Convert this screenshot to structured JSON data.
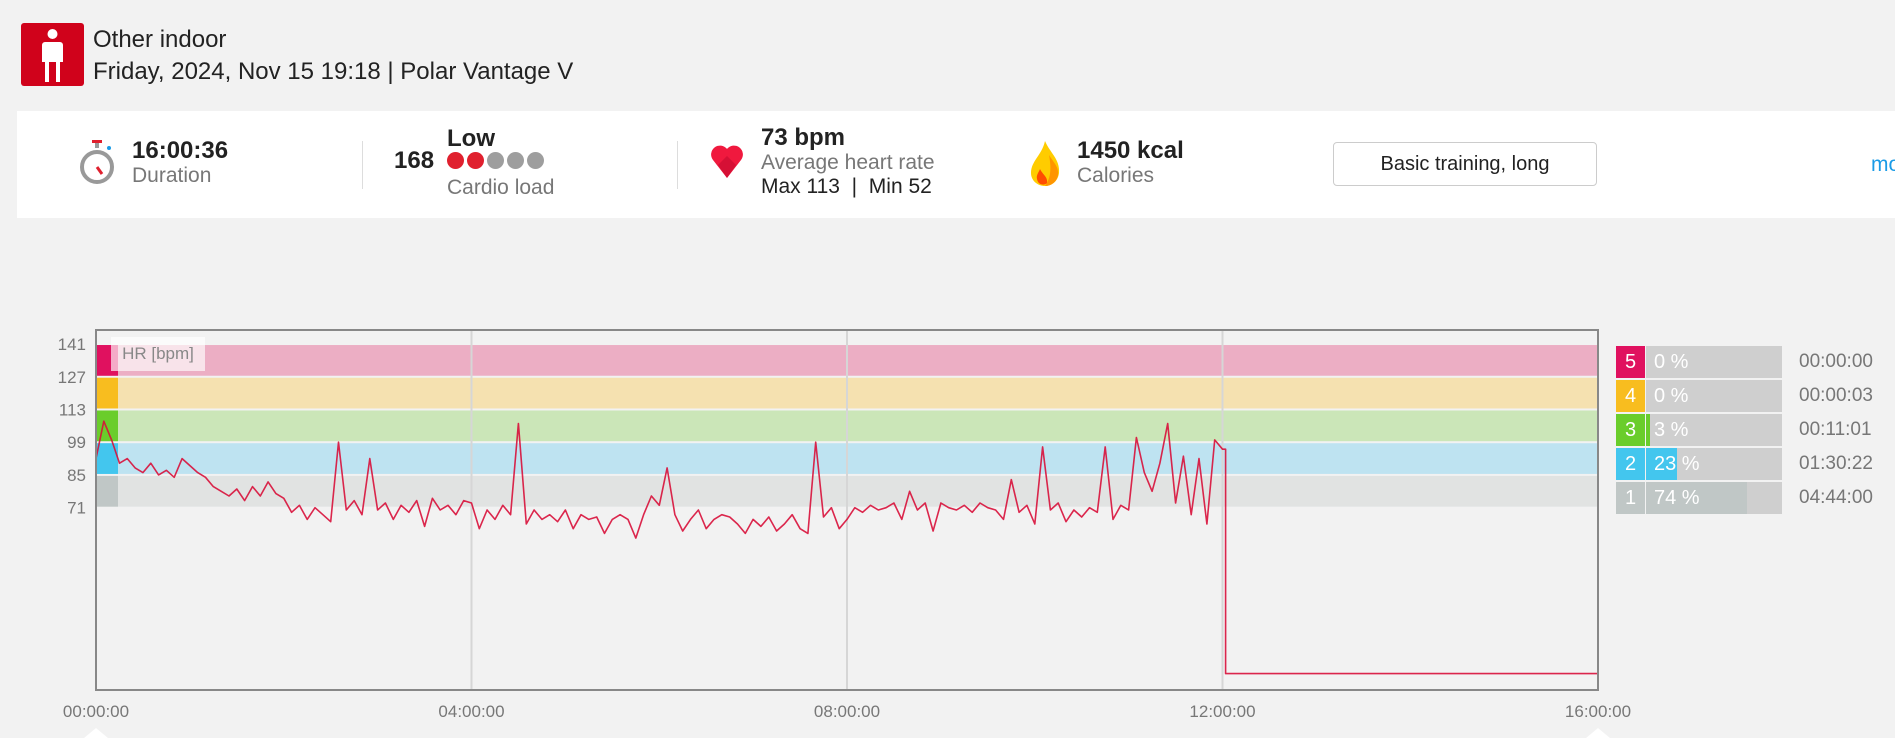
{
  "header": {
    "sport": "Other indoor",
    "subtitle": "Friday, 2024, Nov 15 19:18 | Polar Vantage V"
  },
  "summary": {
    "duration": {
      "value": "16:00:36",
      "label": "Duration"
    },
    "cardio_load": {
      "value": "168",
      "level_text": "Low",
      "label": "Cardio load",
      "level": 2,
      "max_level": 5,
      "on_color": "#e0202e",
      "off_color": "#9e9e9e"
    },
    "heart_rate": {
      "value": "73 bpm",
      "label": "Average heart rate",
      "max_min": "Max 113  |  Min 52"
    },
    "calories": {
      "value": "1450 kcal",
      "label": "Calories"
    },
    "training_benefit": "Basic training, long",
    "more_link": "mo"
  },
  "zones": [
    {
      "num": "5",
      "pct_text": "0 %",
      "pct": 0,
      "time": "00:00:00",
      "color": "#e0115f",
      "band": "#ecaec4",
      "from": 127,
      "to": 141
    },
    {
      "num": "4",
      "pct_text": "0 %",
      "pct": 0,
      "time": "00:00:03",
      "color": "#f8bd1f",
      "band": "#f5e1b0",
      "from": 113,
      "to": 127
    },
    {
      "num": "3",
      "pct_text": "3 %",
      "pct": 3,
      "time": "00:11:01",
      "color": "#6acd2b",
      "band": "#cbe6b8",
      "from": 99,
      "to": 113
    },
    {
      "num": "2",
      "pct_text": "23 %",
      "pct": 23,
      "time": "01:30:22",
      "color": "#43c6ee",
      "band": "#bee3f1",
      "from": 85,
      "to": 99
    },
    {
      "num": "1",
      "pct_text": "74 %",
      "pct": 74,
      "time": "04:44:00",
      "color": "#c0c7c6",
      "band": "#e1e3e2",
      "from": 71,
      "to": 85
    }
  ],
  "chart_data": {
    "type": "line",
    "title": "HR [bpm]",
    "ylabel": "HR [bpm]",
    "xlabel": "",
    "yticks": [
      141,
      127,
      113,
      99,
      85,
      71
    ],
    "xticks": [
      "00:00:00",
      "04:00:00",
      "08:00:00",
      "12:00:00",
      "16:00:00"
    ],
    "xtick_minutes": [
      0,
      240,
      480,
      720,
      960
    ],
    "xlim_minutes": [
      0,
      960
    ],
    "ylim": [
      -7,
      147
    ],
    "line_color": "#d8103a",
    "series": [
      {
        "name": "Heart rate",
        "x_minutes": [
          0,
          5,
          10,
          15,
          20,
          25,
          30,
          35,
          40,
          45,
          50,
          55,
          60,
          65,
          70,
          75,
          80,
          85,
          90,
          95,
          100,
          105,
          110,
          115,
          120,
          125,
          130,
          135,
          140,
          145,
          150,
          155,
          160,
          165,
          170,
          175,
          180,
          185,
          190,
          195,
          200,
          205,
          210,
          215,
          220,
          225,
          230,
          235,
          240,
          245,
          250,
          255,
          260,
          265,
          270,
          275,
          280,
          285,
          290,
          295,
          300,
          305,
          310,
          315,
          320,
          325,
          330,
          335,
          340,
          345,
          350,
          355,
          360,
          365,
          370,
          375,
          380,
          385,
          390,
          395,
          400,
          405,
          410,
          415,
          420,
          425,
          430,
          435,
          440,
          445,
          450,
          455,
          460,
          465,
          470,
          475,
          480,
          485,
          490,
          495,
          500,
          505,
          510,
          515,
          520,
          525,
          530,
          535,
          540,
          545,
          550,
          555,
          560,
          565,
          570,
          575,
          580,
          585,
          590,
          595,
          600,
          605,
          610,
          615,
          620,
          625,
          630,
          635,
          640,
          645,
          650,
          655,
          660,
          665,
          670,
          675,
          680,
          685,
          690,
          695,
          700,
          705,
          710,
          715,
          720,
          722,
          960
        ],
        "values": [
          92,
          108,
          100,
          90,
          92,
          88,
          86,
          90,
          85,
          87,
          84,
          92,
          89,
          86,
          84,
          80,
          78,
          76,
          79,
          74,
          80,
          76,
          82,
          77,
          75,
          69,
          72,
          66,
          71,
          68,
          65,
          99,
          70,
          74,
          68,
          92,
          70,
          73,
          66,
          72,
          69,
          74,
          63,
          75,
          70,
          72,
          68,
          74,
          73,
          62,
          70,
          66,
          72,
          68,
          107,
          64,
          70,
          66,
          68,
          65,
          70,
          62,
          68,
          66,
          67,
          60,
          66,
          68,
          66,
          58,
          68,
          76,
          72,
          88,
          68,
          61,
          66,
          70,
          62,
          66,
          68,
          67,
          64,
          60,
          66,
          63,
          67,
          61,
          64,
          68,
          62,
          60,
          99,
          67,
          71,
          62,
          66,
          71,
          69,
          72,
          70,
          71,
          73,
          66,
          78,
          70,
          73,
          61,
          73,
          71,
          70,
          72,
          69,
          73,
          71,
          70,
          66,
          83,
          69,
          72,
          64,
          97,
          70,
          73,
          65,
          70,
          67,
          71,
          69,
          97,
          66,
          72,
          70,
          101,
          86,
          78,
          90,
          107,
          73,
          93,
          68,
          92,
          64,
          100,
          96,
          0,
          0
        ]
      }
    ]
  }
}
